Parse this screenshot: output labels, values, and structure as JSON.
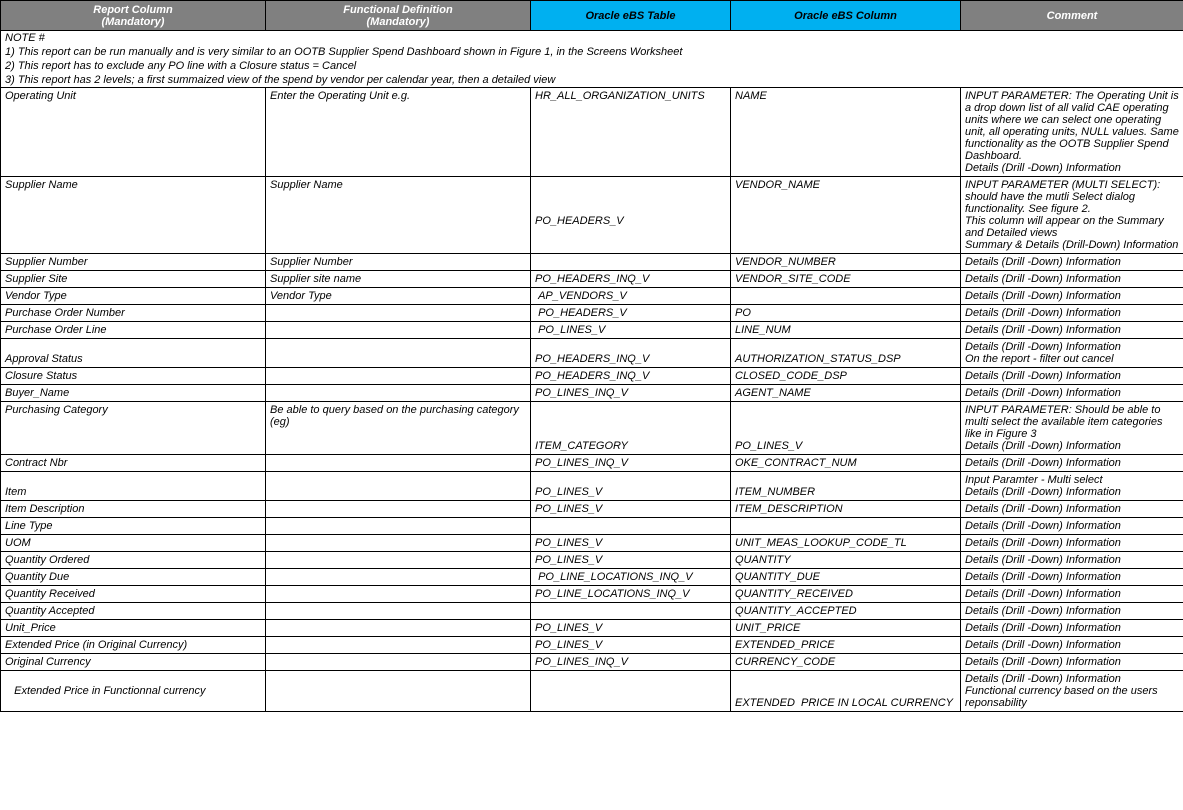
{
  "headers": {
    "c1_line1": "Report Column",
    "c1_line2": "(Mandatory)",
    "c2_line1": "Functional  Definition",
    "c2_line2": "(Mandatory)",
    "c3": "Oracle eBS Table",
    "c4": "Oracle eBS Column",
    "c5": "Comment"
  },
  "colors": {
    "grey_header_bg": "#808080",
    "blue_header_bg": "#00b0f0",
    "border": "#000000",
    "bg": "#ffffff"
  },
  "notes": {
    "title": "NOTE #",
    "line1": "1) This report can be run manually and is very similar to an OOTB Supplier Spend Dashboard shown in Figure 1, in the Screens Worksheet",
    "line2": "2) This report has to exclude any PO line with a Closure status =  Cancel",
    "line3": "3) This report has 2 levels; a first summaized view of the spend by vendor per calendar year, then a detailed view"
  },
  "rows": [
    {
      "c1": "Operating Unit",
      "c2": "Enter the Operating Unit e.g.",
      "c3": "HR_ALL_ORGANIZATION_UNITS",
      "c4": "NAME",
      "c5": "INPUT PARAMETER: The Operating Unit is a drop down list of all valid CAE operating units where we can select one operating unit, all operating units, NULL values. Same functionality as the OOTB Supplier Spend Dashboard.\nDetails (Drill -Down) Information"
    },
    {
      "c1": "Supplier Name",
      "c2": "Supplier Name",
      "c3": "\n\n\nPO_HEADERS_V",
      "c4": "VENDOR_NAME",
      "c5": "INPUT PARAMETER (MULTI SELECT): should have the mutli Select dialog functionality. See figure 2.\nThis column will appear on the Summary and Detailed views\nSummary & Details (Drill-Down) Information"
    },
    {
      "c1": "Supplier Number",
      "c2": "Supplier Number",
      "c3": "",
      "c4": "VENDOR_NUMBER",
      "c5": "Details (Drill -Down) Information"
    },
    {
      "c1": "Supplier Site",
      "c2": "Supplier site name",
      "c3": "PO_HEADERS_INQ_V",
      "c4": "VENDOR_SITE_CODE",
      "c5": "Details (Drill -Down) Information"
    },
    {
      "c1": "Vendor Type",
      "c2": "Vendor Type",
      "c3": " AP_VENDORS_V",
      "c4": "",
      "c5": "Details (Drill -Down) Information"
    },
    {
      "c1": "Purchase Order Number",
      "c2": "",
      "c3": " PO_HEADERS_V",
      "c4": "PO",
      "c5": "Details (Drill -Down) Information"
    },
    {
      "c1": "Purchase Order Line",
      "c2": "",
      "c3": " PO_LINES_V",
      "c4": "LINE_NUM",
      "c5": "Details (Drill -Down) Information"
    },
    {
      "c1": "\nApproval Status",
      "c2": "",
      "c3": "\nPO_HEADERS_INQ_V",
      "c4": "\nAUTHORIZATION_STATUS_DSP",
      "c5": "Details (Drill -Down) Information\nOn the report - filter out cancel"
    },
    {
      "c1": "Closure Status",
      "c2": "",
      "c3": "PO_HEADERS_INQ_V",
      "c4": "CLOSED_CODE_DSP",
      "c5": "Details (Drill -Down) Information"
    },
    {
      "c1": "Buyer_Name",
      "c2": "",
      "c3": "PO_LINES_INQ_V",
      "c4": "AGENT_NAME",
      "c5": "Details (Drill -Down) Information"
    },
    {
      "c1": "Purchasing Category",
      "c2": "Be able to query based on the purchasing category (eg)",
      "c3": "\n\n\nITEM_CATEGORY",
      "c4": "\n\n\nPO_LINES_V",
      "c5": "INPUT PARAMETER: Should be able to multi select the available item categories like in Figure 3\nDetails (Drill -Down) Information"
    },
    {
      "c1": "Contract Nbr",
      "c2": "",
      "c3": "PO_LINES_INQ_V",
      "c4": "OKE_CONTRACT_NUM",
      "c5": "Details (Drill -Down) Information"
    },
    {
      "c1": "\nItem",
      "c2": "",
      "c3": "\nPO_LINES_V",
      "c4": "\nITEM_NUMBER",
      "c5": "Input Paramter - Multi select\nDetails (Drill -Down) Information"
    },
    {
      "c1": "Item Description",
      "c2": "",
      "c3": "PO_LINES_V",
      "c4": "ITEM_DESCRIPTION",
      "c5": "Details (Drill -Down) Information"
    },
    {
      "c1": "Line Type",
      "c2": "",
      "c3": "",
      "c4": "",
      "c5": "Details (Drill -Down) Information"
    },
    {
      "c1": "UOM",
      "c2": "",
      "c3": "PO_LINES_V",
      "c4": "UNIT_MEAS_LOOKUP_CODE_TL",
      "c5": "Details (Drill -Down) Information"
    },
    {
      "c1": "Quantity Ordered",
      "c2": "",
      "c3": "PO_LINES_V",
      "c4": "QUANTITY",
      "c5": "Details (Drill -Down) Information"
    },
    {
      "c1": "Quantity Due",
      "c2": "",
      "c3": " PO_LINE_LOCATIONS_INQ_V",
      "c4": "QUANTITY_DUE",
      "c5": "Details (Drill -Down) Information"
    },
    {
      "c1": "Quantity Received",
      "c2": "",
      "c3": "PO_LINE_LOCATIONS_INQ_V",
      "c4": "QUANTITY_RECEIVED",
      "c5": "Details (Drill -Down) Information"
    },
    {
      "c1": "Quantity Accepted",
      "c2": "",
      "c3": "",
      "c4": "QUANTITY_ACCEPTED",
      "c5": "Details (Drill -Down) Information"
    },
    {
      "c1": "Unit_Price",
      "c2": "",
      "c3": "PO_LINES_V",
      "c4": "UNIT_PRICE",
      "c5": "Details (Drill -Down) Information"
    },
    {
      "c1": "Extended Price (in Original Currency)",
      "c2": "",
      "c3": "PO_LINES_V",
      "c4": "EXTENDED_PRICE",
      "c5": "Details (Drill -Down) Information"
    },
    {
      "c1": "Original Currency",
      "c2": "",
      "c3": "PO_LINES_INQ_V",
      "c4": "CURRENCY_CODE",
      "c5": "Details (Drill -Down) Information"
    },
    {
      "c1": "\n   Extended Price in Functionnal currency",
      "c2": "",
      "c3": "",
      "c4": "\n\nEXTENDED  PRICE IN LOCAL CURRENCY",
      "c5": "Details (Drill -Down) Information\nFunctional currency based on the users reponsability"
    }
  ]
}
